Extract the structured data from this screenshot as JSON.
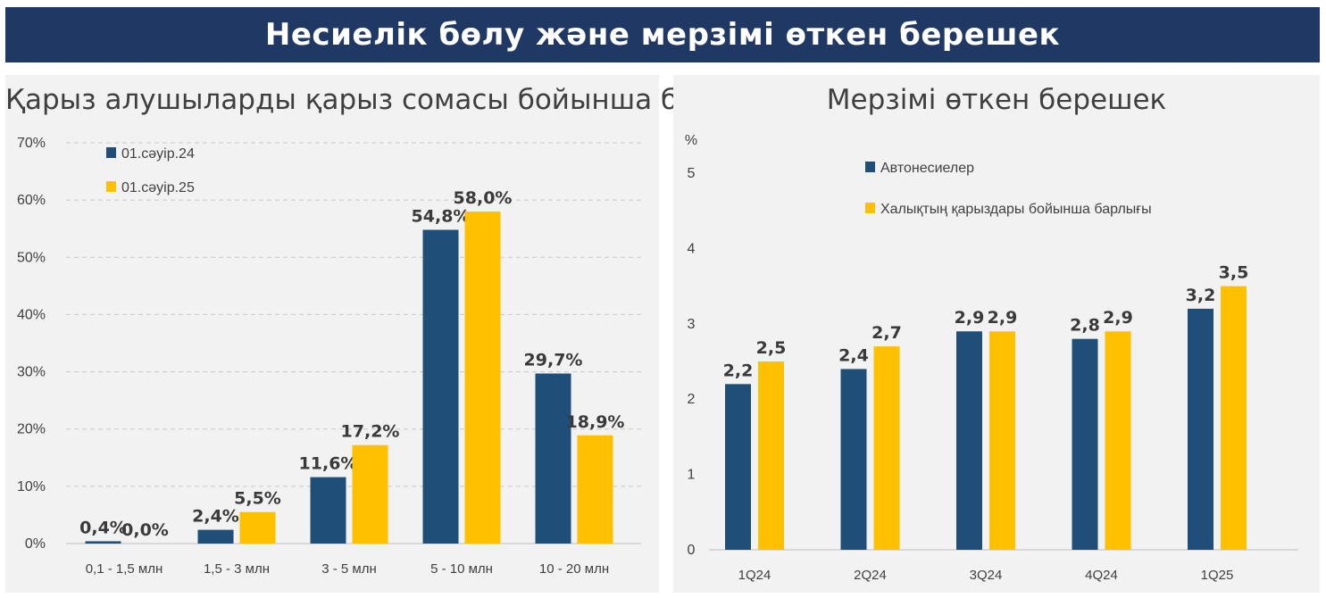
{
  "banner": {
    "title": "Несиелік бөлу және мерзімі өткен берешек"
  },
  "colors": {
    "banner_bg": "#1f3864",
    "series_blue": "#1f4e79",
    "series_yellow": "#ffc000",
    "panel_bg": "#f2f2f2"
  },
  "chart_data": [
    {
      "type": "bar",
      "title": "Қарыз алушыларды қарыз сомасы бойынша бөлу",
      "categories": [
        "0,1 - 1,5 млн",
        "1,5 - 3 млн",
        "3 - 5 млн",
        "5 - 10 млн",
        "10 - 20 млн"
      ],
      "series": [
        {
          "name": "01.сәуір.24",
          "values": [
            0.4,
            2.4,
            11.6,
            54.8,
            29.7
          ],
          "labels": [
            "0,4%",
            "2,4%",
            "11,6%",
            "54,8%",
            "29,7%"
          ]
        },
        {
          "name": "01.сәуір.25",
          "values": [
            0.0,
            5.5,
            17.2,
            58.0,
            18.9
          ],
          "labels": [
            "0,0%",
            "5,5%",
            "17,2%",
            "58,0%",
            "18,9%"
          ]
        }
      ],
      "ylim": [
        0,
        70
      ],
      "yticks": [
        "0%",
        "10%",
        "20%",
        "30%",
        "40%",
        "50%",
        "60%",
        "70%"
      ],
      "grid": true,
      "legend": "top-left"
    },
    {
      "type": "bar",
      "title": "Мерзімі өткен берешек",
      "unit": "%",
      "categories": [
        "1Q24",
        "2Q24",
        "3Q24",
        "4Q24",
        "1Q25"
      ],
      "series": [
        {
          "name": "Автонесиелер",
          "values": [
            2.2,
            2.4,
            2.9,
            2.8,
            3.2
          ],
          "labels": [
            "2,2",
            "2,4",
            "2,9",
            "2,8",
            "3,2"
          ]
        },
        {
          "name": "Халықтың қарыздары бойынша барлығы",
          "values": [
            2.5,
            2.7,
            2.9,
            2.9,
            3.5
          ],
          "labels": [
            "2,5",
            "2,7",
            "2,9",
            "2,9",
            "3,5"
          ]
        }
      ],
      "ylim": [
        0,
        5
      ],
      "yticks": [
        "0",
        "1",
        "2",
        "3",
        "4",
        "5"
      ],
      "grid": false,
      "legend": "top-left"
    }
  ]
}
